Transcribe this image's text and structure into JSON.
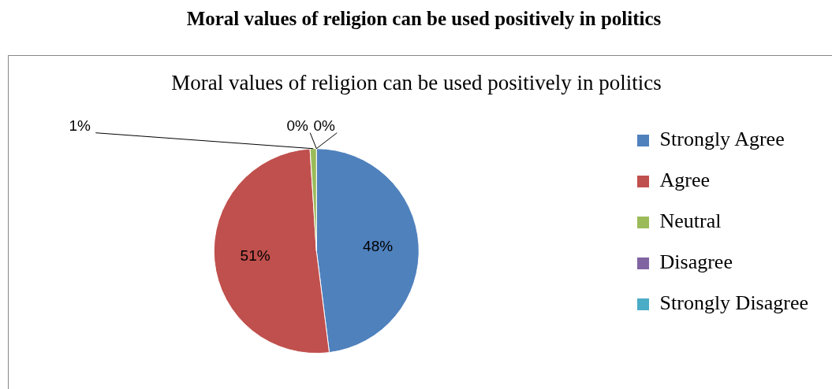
{
  "chart_data": {
    "type": "pie",
    "title": "Moral values of religion can be used positively in politics",
    "subtitle": "Moral values of religion can be used positively in politics",
    "categories": [
      "Strongly Agree",
      "Agree",
      "Neutral",
      "Disagree",
      "Strongly Disagree"
    ],
    "values": [
      48,
      51,
      1,
      0,
      0
    ],
    "colors": [
      "#4f81bd",
      "#c0504d",
      "#9bbb59",
      "#8064a2",
      "#4bacc6"
    ],
    "value_labels": [
      "48%",
      "51%",
      "1%",
      "0%",
      "0%"
    ],
    "legend": "right"
  }
}
